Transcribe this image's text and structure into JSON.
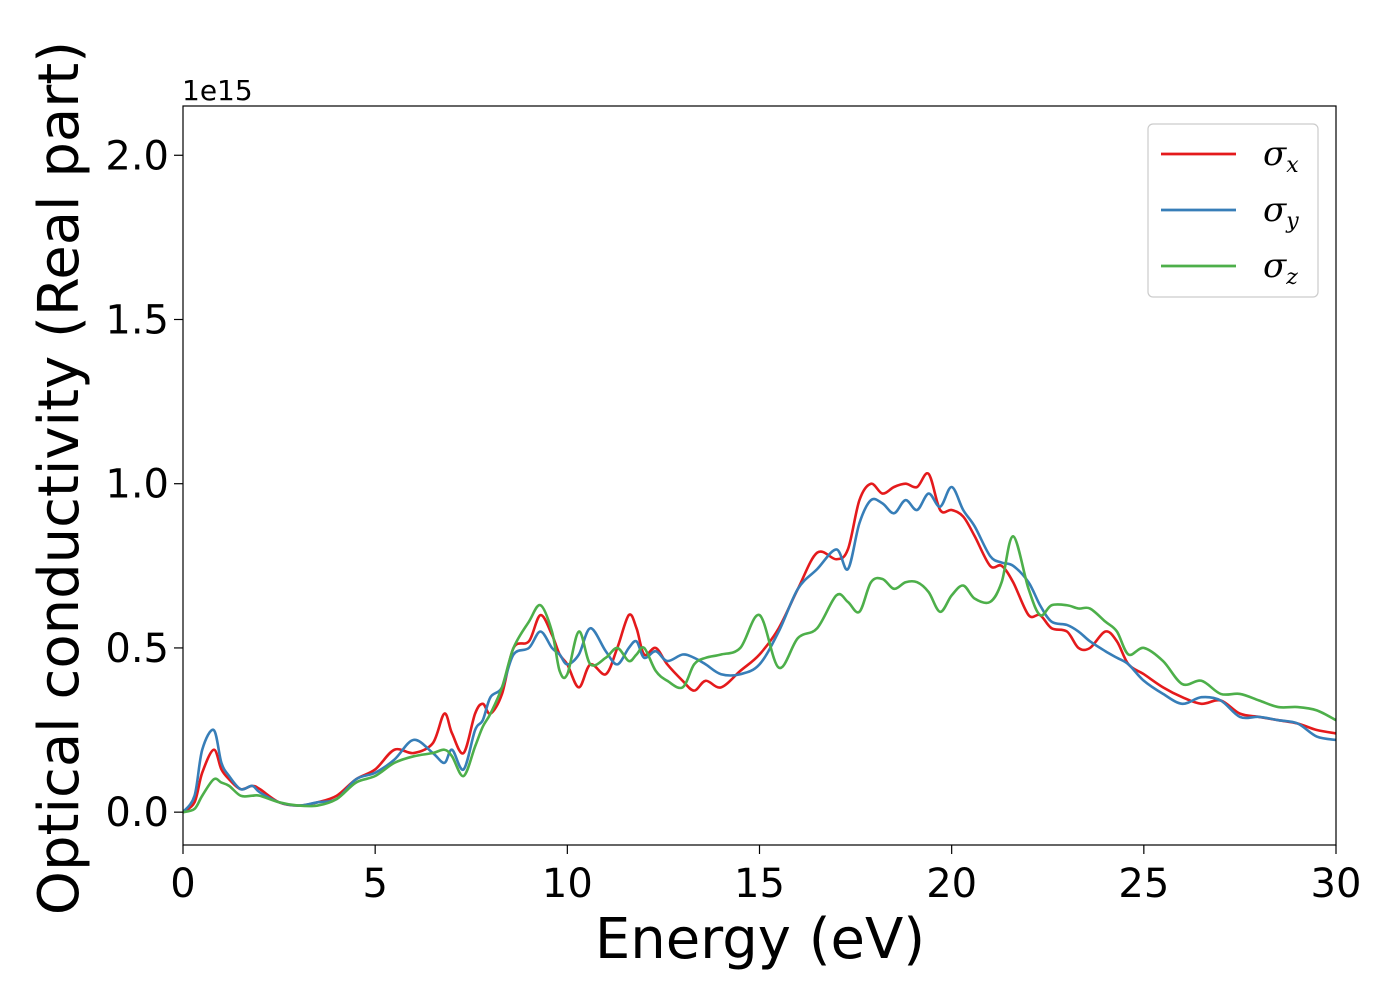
{
  "chart_data": {
    "type": "line",
    "title": "",
    "xlabel": "Energy (eV)",
    "ylabel": "Optical conductivity (Real part)",
    "y_offset_label": "1e15",
    "xlim": [
      0,
      30
    ],
    "ylim": [
      -0.1,
      2.15
    ],
    "xticks": [
      0,
      5,
      10,
      15,
      20,
      25,
      30
    ],
    "xtick_labels": [
      "0",
      "5",
      "10",
      "15",
      "20",
      "25",
      "30"
    ],
    "yticks": [
      0.0,
      0.5,
      1.0,
      1.5,
      2.0
    ],
    "ytick_labels": [
      "0.0",
      "0.5",
      "1.0",
      "1.5",
      "2.0"
    ],
    "grid": false,
    "legend_position": "top-right",
    "series": [
      {
        "name": "σx",
        "symbol": "σ",
        "subscript": "x",
        "color": "#e41a1c",
        "x": [
          0,
          0.3,
          0.5,
          0.8,
          1.0,
          1.2,
          1.5,
          1.8,
          2.0,
          2.5,
          3.0,
          3.5,
          4.0,
          4.5,
          5.0,
          5.5,
          6.0,
          6.5,
          6.8,
          7.0,
          7.3,
          7.6,
          7.8,
          8.0,
          8.3,
          8.6,
          9.0,
          9.3,
          9.6,
          9.8,
          10.0,
          10.3,
          10.6,
          11.0,
          11.3,
          11.6,
          11.8,
          12.0,
          12.3,
          12.6,
          13.0,
          13.3,
          13.6,
          14.0,
          14.5,
          15.0,
          15.5,
          16.0,
          16.5,
          17.0,
          17.3,
          17.6,
          17.9,
          18.2,
          18.5,
          18.8,
          19.1,
          19.4,
          19.7,
          20.0,
          20.3,
          20.6,
          21.0,
          21.3,
          21.6,
          22.0,
          22.3,
          22.6,
          23.0,
          23.3,
          23.6,
          24.0,
          24.3,
          24.6,
          25.0,
          25.5,
          26.0,
          26.5,
          27.0,
          27.5,
          28.0,
          28.5,
          29.0,
          29.5,
          30.0
        ],
        "y": [
          0.0,
          0.03,
          0.12,
          0.19,
          0.13,
          0.1,
          0.07,
          0.08,
          0.07,
          0.03,
          0.02,
          0.03,
          0.05,
          0.1,
          0.13,
          0.19,
          0.18,
          0.21,
          0.3,
          0.24,
          0.18,
          0.3,
          0.33,
          0.3,
          0.36,
          0.5,
          0.52,
          0.6,
          0.54,
          0.48,
          0.45,
          0.38,
          0.45,
          0.42,
          0.5,
          0.6,
          0.56,
          0.48,
          0.5,
          0.45,
          0.4,
          0.37,
          0.4,
          0.38,
          0.43,
          0.48,
          0.56,
          0.68,
          0.79,
          0.77,
          0.8,
          0.95,
          1.0,
          0.97,
          0.99,
          1.0,
          0.99,
          1.03,
          0.92,
          0.92,
          0.9,
          0.84,
          0.75,
          0.75,
          0.7,
          0.6,
          0.6,
          0.56,
          0.55,
          0.5,
          0.5,
          0.55,
          0.52,
          0.45,
          0.42,
          0.38,
          0.35,
          0.33,
          0.34,
          0.3,
          0.29,
          0.28,
          0.27,
          0.25,
          0.24
        ]
      },
      {
        "name": "σy",
        "symbol": "σ",
        "subscript": "y",
        "color": "#377eb8",
        "x": [
          0,
          0.3,
          0.5,
          0.8,
          1.0,
          1.2,
          1.5,
          1.8,
          2.0,
          2.5,
          3.0,
          3.5,
          4.0,
          4.5,
          5.0,
          5.5,
          6.0,
          6.5,
          6.8,
          7.0,
          7.3,
          7.6,
          7.8,
          8.0,
          8.3,
          8.6,
          9.0,
          9.3,
          9.6,
          9.8,
          10.0,
          10.3,
          10.6,
          11.0,
          11.3,
          11.6,
          11.8,
          12.0,
          12.3,
          12.6,
          13.0,
          13.3,
          13.6,
          14.0,
          14.5,
          15.0,
          15.5,
          16.0,
          16.5,
          17.0,
          17.3,
          17.6,
          17.9,
          18.2,
          18.5,
          18.8,
          19.1,
          19.4,
          19.7,
          20.0,
          20.3,
          20.6,
          21.0,
          21.3,
          21.6,
          22.0,
          22.3,
          22.6,
          23.0,
          23.3,
          23.6,
          24.0,
          24.3,
          24.6,
          25.0,
          25.5,
          26.0,
          26.5,
          27.0,
          27.5,
          28.0,
          28.5,
          29.0,
          29.5,
          30.0
        ],
        "y": [
          0.0,
          0.05,
          0.19,
          0.25,
          0.15,
          0.11,
          0.07,
          0.08,
          0.06,
          0.03,
          0.02,
          0.03,
          0.04,
          0.1,
          0.12,
          0.16,
          0.22,
          0.18,
          0.15,
          0.19,
          0.13,
          0.25,
          0.28,
          0.35,
          0.38,
          0.48,
          0.5,
          0.55,
          0.5,
          0.48,
          0.45,
          0.48,
          0.56,
          0.49,
          0.45,
          0.5,
          0.52,
          0.47,
          0.49,
          0.46,
          0.48,
          0.47,
          0.45,
          0.42,
          0.42,
          0.45,
          0.55,
          0.68,
          0.74,
          0.8,
          0.74,
          0.88,
          0.95,
          0.94,
          0.91,
          0.95,
          0.92,
          0.97,
          0.93,
          0.99,
          0.92,
          0.87,
          0.78,
          0.76,
          0.75,
          0.7,
          0.63,
          0.58,
          0.57,
          0.55,
          0.52,
          0.49,
          0.47,
          0.45,
          0.4,
          0.36,
          0.33,
          0.35,
          0.34,
          0.29,
          0.29,
          0.28,
          0.27,
          0.23,
          0.22
        ]
      },
      {
        "name": "σz",
        "symbol": "σ",
        "subscript": "z",
        "color": "#4daf4a",
        "x": [
          0,
          0.3,
          0.5,
          0.8,
          1.0,
          1.2,
          1.5,
          1.8,
          2.0,
          2.5,
          3.0,
          3.5,
          4.0,
          4.5,
          5.0,
          5.5,
          6.0,
          6.5,
          6.8,
          7.0,
          7.3,
          7.6,
          7.8,
          8.0,
          8.3,
          8.6,
          9.0,
          9.3,
          9.6,
          9.8,
          10.0,
          10.3,
          10.6,
          11.0,
          11.3,
          11.6,
          11.8,
          12.0,
          12.3,
          12.6,
          13.0,
          13.3,
          13.6,
          14.0,
          14.5,
          15.0,
          15.5,
          16.0,
          16.5,
          17.0,
          17.3,
          17.6,
          17.9,
          18.2,
          18.5,
          18.8,
          19.1,
          19.4,
          19.7,
          20.0,
          20.3,
          20.6,
          21.0,
          21.3,
          21.6,
          22.0,
          22.3,
          22.6,
          23.0,
          23.3,
          23.6,
          24.0,
          24.3,
          24.6,
          25.0,
          25.5,
          26.0,
          26.5,
          27.0,
          27.5,
          28.0,
          28.5,
          29.0,
          29.5,
          30.0
        ],
        "y": [
          0.0,
          0.01,
          0.05,
          0.1,
          0.09,
          0.08,
          0.05,
          0.05,
          0.05,
          0.03,
          0.02,
          0.02,
          0.04,
          0.09,
          0.11,
          0.15,
          0.17,
          0.18,
          0.19,
          0.17,
          0.11,
          0.2,
          0.26,
          0.3,
          0.38,
          0.5,
          0.58,
          0.63,
          0.55,
          0.43,
          0.42,
          0.55,
          0.45,
          0.47,
          0.5,
          0.46,
          0.48,
          0.5,
          0.43,
          0.4,
          0.38,
          0.45,
          0.47,
          0.48,
          0.5,
          0.6,
          0.44,
          0.53,
          0.56,
          0.66,
          0.64,
          0.61,
          0.7,
          0.71,
          0.68,
          0.7,
          0.7,
          0.67,
          0.61,
          0.66,
          0.69,
          0.65,
          0.64,
          0.7,
          0.84,
          0.68,
          0.6,
          0.63,
          0.63,
          0.62,
          0.62,
          0.58,
          0.55,
          0.48,
          0.5,
          0.46,
          0.39,
          0.4,
          0.36,
          0.36,
          0.34,
          0.32,
          0.32,
          0.31,
          0.28
        ]
      }
    ]
  }
}
